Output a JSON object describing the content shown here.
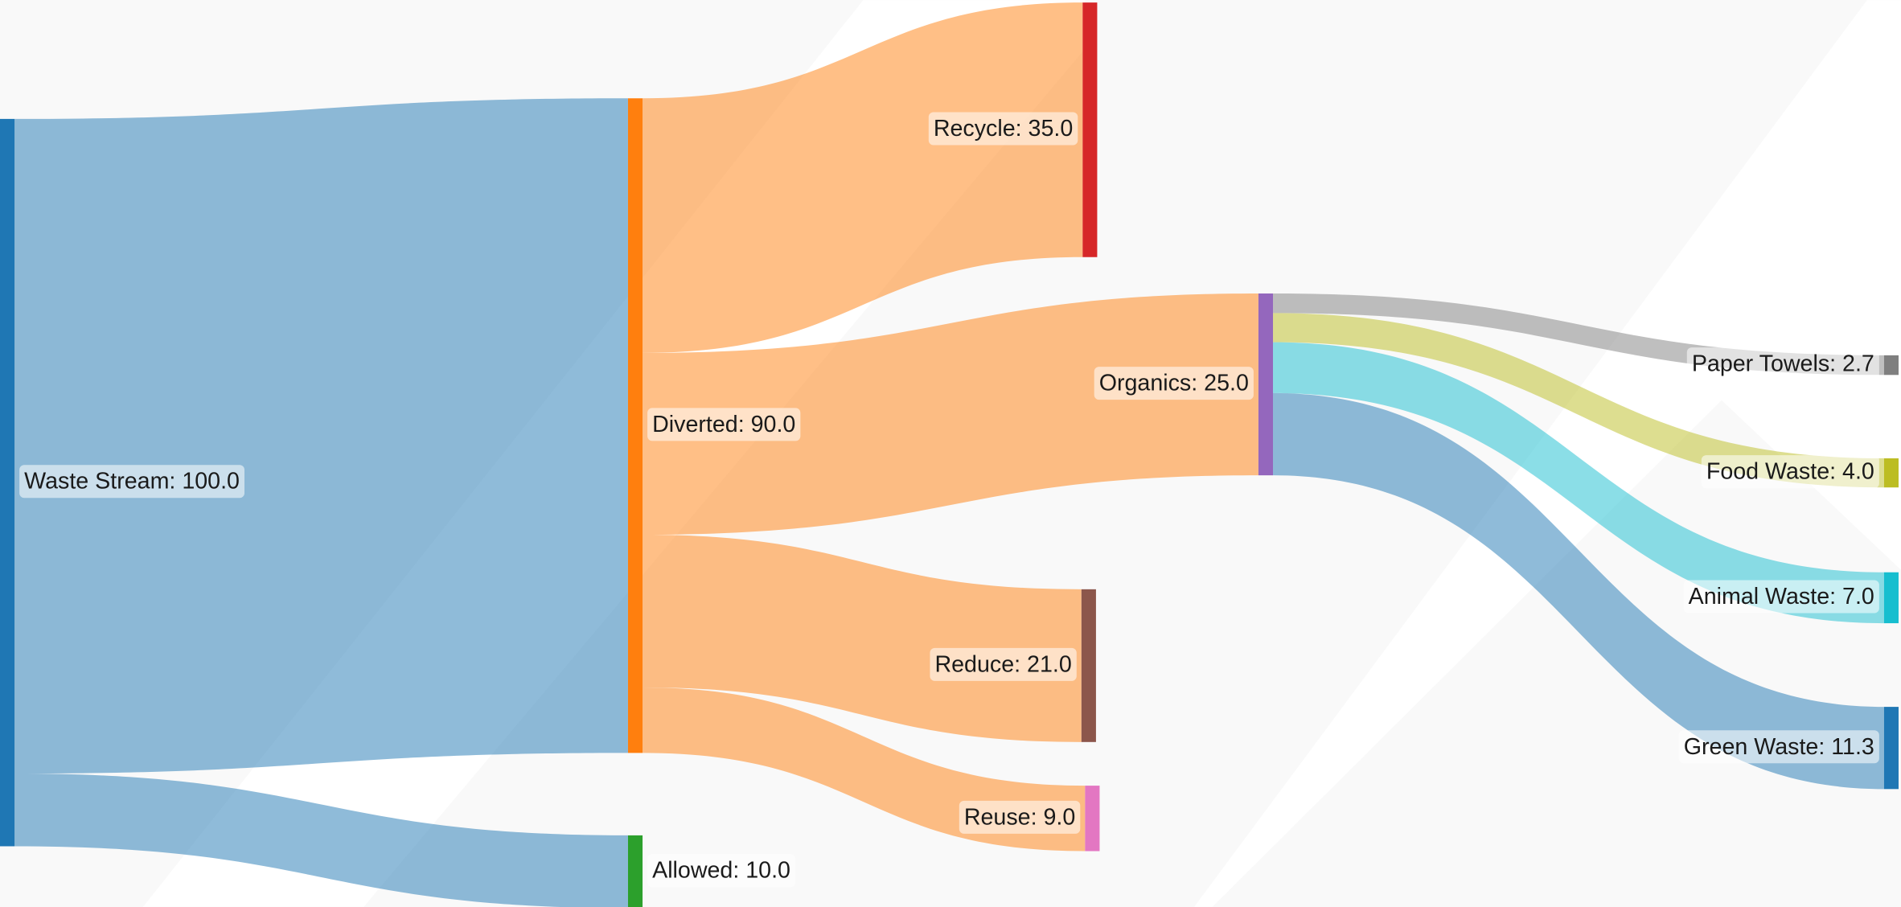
{
  "chart_data": {
    "type": "sankey",
    "nodes": [
      {
        "label": "Waste Stream: 100.0",
        "color": "#1f77b4"
      },
      {
        "label": "Diverted: 90.0",
        "color": "#ff7f0e"
      },
      {
        "label": "Allowed: 10.0",
        "color": "#2ca02c"
      },
      {
        "label": "Recycle: 35.0",
        "color": "#d62728"
      },
      {
        "label": "Organics: 25.0",
        "color": "#9467bd"
      },
      {
        "label": "Reduce: 21.0",
        "color": "#8c564b"
      },
      {
        "label": "Reuse: 9.0",
        "color": "#e377c2"
      },
      {
        "label": "Paper Towels: 2.7",
        "color": "#7f7f7f"
      },
      {
        "label": "Food Waste: 4.0",
        "color": "#bcbd22"
      },
      {
        "label": "Animal Waste: 7.0",
        "color": "#17becf"
      },
      {
        "label": "Green Waste: 11.3",
        "color": "#1f77b4"
      }
    ],
    "links": [
      {
        "source": 0,
        "target": 1,
        "value": 90,
        "color": "rgba(31,119,180,0.5)"
      },
      {
        "source": 0,
        "target": 2,
        "value": 10,
        "color": "rgba(31,119,180,0.5)"
      },
      {
        "source": 1,
        "target": 3,
        "value": 35,
        "color": "rgba(255,127,14,0.5)"
      },
      {
        "source": 1,
        "target": 4,
        "value": 25,
        "color": "rgba(255,127,14,0.5)"
      },
      {
        "source": 1,
        "target": 5,
        "value": 21,
        "color": "rgba(255,127,14,0.5)"
      },
      {
        "source": 1,
        "target": 6,
        "value": 9,
        "color": "rgba(255,127,14,0.5)"
      },
      {
        "source": 4,
        "target": 7,
        "value": 2.7,
        "color": "rgba(127,127,127,0.5)"
      },
      {
        "source": 4,
        "target": 8,
        "value": 4,
        "color": "rgba(188,189,34,0.5)"
      },
      {
        "source": 4,
        "target": 9,
        "value": 7,
        "color": "rgba(23,190,207,0.5)"
      },
      {
        "source": 4,
        "target": 10,
        "value": 11.3,
        "color": "rgba(31,119,180,0.5)"
      }
    ]
  }
}
